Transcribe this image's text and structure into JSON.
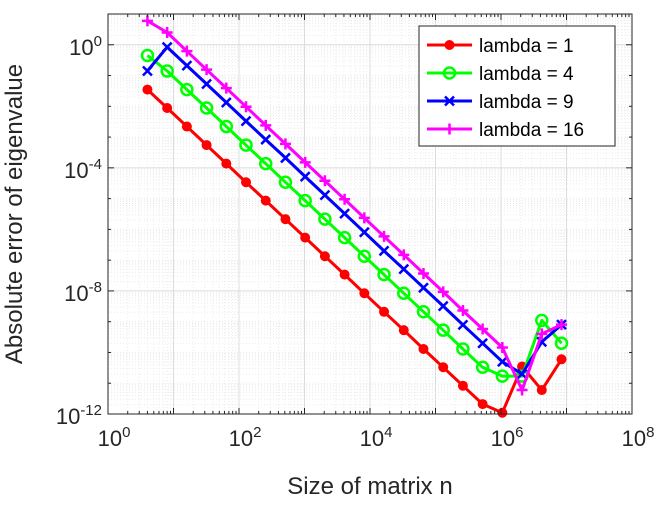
{
  "chart_data": {
    "type": "line",
    "title": "",
    "xlabel": "Size of matrix n",
    "ylabel": "Absolute error of eigenvalue",
    "xscale": "log",
    "yscale": "log",
    "xlim": [
      1,
      100000000
    ],
    "ylim": [
      1e-12,
      10
    ],
    "grid": true,
    "legend_location": "top-right",
    "x_ticks": [
      {
        "base": "10",
        "exp": "0",
        "value": 1
      },
      {
        "base": "10",
        "exp": "2",
        "value": 100
      },
      {
        "base": "10",
        "exp": "4",
        "value": 10000
      },
      {
        "base": "10",
        "exp": "6",
        "value": 1000000
      },
      {
        "base": "10",
        "exp": "8",
        "value": 100000000
      }
    ],
    "y_ticks": [
      {
        "base": "10",
        "exp": "0",
        "value": 1
      },
      {
        "base": "10",
        "exp": "-4",
        "value": 0.0001
      },
      {
        "base": "10",
        "exp": "-8",
        "value": 1e-08
      },
      {
        "base": "10",
        "exp": "-12",
        "value": 1e-12
      }
    ],
    "x": [
      4,
      8,
      16,
      32,
      64,
      128,
      256,
      512,
      1024,
      2048,
      4096,
      8192,
      16384,
      32768,
      65536,
      131072,
      262144,
      524288,
      1048576,
      2097152,
      4194304,
      8388608
    ],
    "series": [
      {
        "name": "lambda = 1",
        "color": "#ff0000",
        "marker": "dot",
        "values": [
          0.035,
          0.0088,
          0.0022,
          0.00055,
          0.000137,
          3.4e-05,
          8.6e-06,
          2.15e-06,
          5.4e-07,
          1.34e-07,
          3.4e-08,
          8.4e-09,
          2.1e-09,
          5.3e-10,
          1.3e-10,
          3.3e-11,
          8.3e-12,
          2.1e-12,
          1.1e-12,
          3.5e-11,
          6e-12,
          6e-11
        ]
      },
      {
        "name": "lambda = 4",
        "color": "#00ff00",
        "marker": "circle",
        "values": [
          0.45,
          0.14,
          0.035,
          0.0088,
          0.0022,
          0.00055,
          0.000137,
          3.4e-05,
          8.6e-06,
          2.15e-06,
          5.4e-07,
          1.34e-07,
          3.4e-08,
          8.4e-09,
          2.1e-09,
          5.3e-10,
          1.3e-10,
          3.3e-11,
          1.7e-11,
          1.7e-11,
          1.1e-09,
          2e-10
        ]
      },
      {
        "name": "lambda = 9",
        "color": "#0000ff",
        "marker": "x",
        "values": [
          0.14,
          0.84,
          0.21,
          0.053,
          0.0133,
          0.0033,
          0.00083,
          0.00021,
          5.2e-05,
          1.3e-05,
          3.25e-06,
          8.1e-07,
          2e-07,
          5.1e-08,
          1.27e-08,
          3.2e-09,
          7.9e-10,
          2e-10,
          5e-11,
          2e-11,
          2.2e-10,
          8e-10
        ]
      },
      {
        "name": "lambda = 16",
        "color": "#ff00ff",
        "marker": "plus",
        "values": [
          6.0,
          2.5,
          0.62,
          0.155,
          0.039,
          0.0097,
          0.0024,
          0.0006,
          0.00015,
          3.8e-05,
          9.5e-06,
          2.37e-06,
          5.9e-07,
          1.48e-07,
          3.7e-08,
          9.3e-09,
          2.3e-09,
          5.8e-10,
          1.45e-10,
          6e-12,
          4e-10,
          8e-10
        ]
      }
    ]
  }
}
